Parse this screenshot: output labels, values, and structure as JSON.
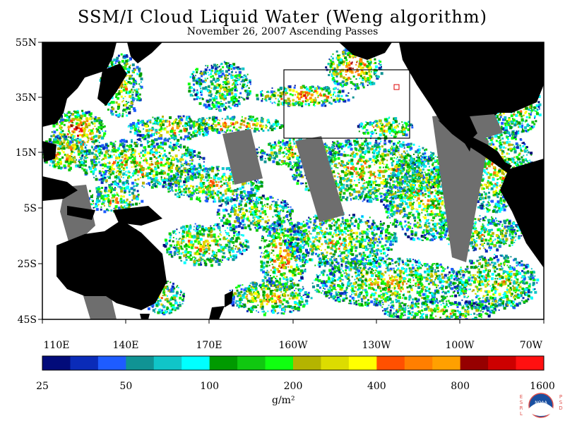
{
  "title": "SSM/I Cloud Liquid Water (Weng algorithm)",
  "subtitle": "November 26, 2007  Ascending Passes",
  "lat_ticks": [
    "55N",
    "35N",
    "15N",
    "5S",
    "25S",
    "45S"
  ],
  "lon_ticks": [
    "110E",
    "140E",
    "170E",
    "160W",
    "130W",
    "100W",
    "70W"
  ],
  "colorbar": {
    "colors": [
      "#020b7a",
      "#0a2bb8",
      "#1e5cff",
      "#109394",
      "#10c5c8",
      "#00ffff",
      "#009a00",
      "#10c810",
      "#10ff10",
      "#b4b400",
      "#dcdc00",
      "#ffff00",
      "#ff5000",
      "#ff7f00",
      "#ffa000",
      "#960000",
      "#cd0000",
      "#ff1010"
    ],
    "labels": [
      "25",
      "50",
      "100",
      "200",
      "400",
      "800",
      "1600"
    ],
    "unit": "g/m²"
  },
  "colors": {
    "land": "#000000",
    "no_data": "#6e6e6e",
    "clear": "#ffffff"
  },
  "logo": {
    "left": "E S R L",
    "right": "P S D",
    "center": "NOAA"
  }
}
